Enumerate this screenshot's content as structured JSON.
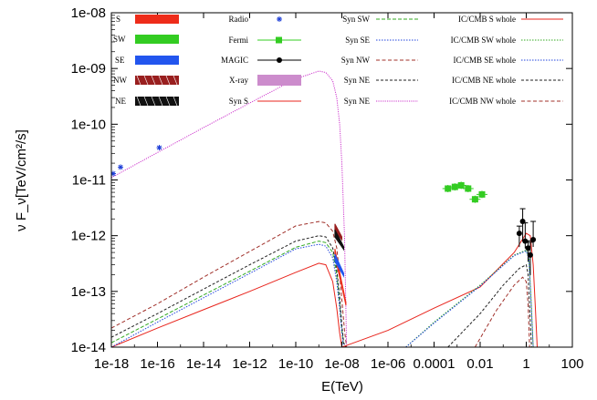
{
  "chart_data": {
    "type": "line",
    "xlabel": "E(TeV)",
    "ylabel": "ν F_ν[TeV/cm²/s]",
    "xscale": "log",
    "yscale": "log",
    "xlim": [
      1e-18,
      100
    ],
    "ylim": [
      1e-14,
      1e-08
    ],
    "grid": false,
    "legend_placement": "top",
    "x_tick_labels": [
      "1e-18",
      "1e-16",
      "1e-14",
      "1e-12",
      "1e-10",
      "1e-08",
      "1e-06",
      "0.0001",
      "0.01",
      "1",
      "100"
    ],
    "y_tick_labels": [
      "1e-08",
      "1e-09",
      "1e-10",
      "1e-11",
      "1e-12",
      "1e-13",
      "1e-14"
    ],
    "region_tags": [
      "S",
      "SW",
      "SE",
      "NW",
      "NE"
    ],
    "legend": {
      "col1": [
        "Radio",
        "Fermi",
        "MAGIC",
        "X-ray",
        "Syn S"
      ],
      "col2": [
        "Syn SW",
        "Syn SE",
        "Syn NW",
        "Syn NE",
        "Syn NE"
      ],
      "col3": [
        "IC/CMB S whole",
        "IC/CMB SW whole",
        "IC/CMB SE whole",
        "IC/CMB NE whole",
        "IC/CMB NW whole"
      ]
    },
    "series": [
      {
        "name": "Radio",
        "kind": "points",
        "color": "#1f3fd8",
        "x": [
          1.2e-18,
          2.5e-18,
          1.2e-16
        ],
        "y": [
          1.3e-11,
          1.7e-11,
          3.8e-11
        ]
      },
      {
        "name": "Fermi",
        "kind": "points",
        "color": "#33cc22",
        "x": [
          0.0004,
          0.0008,
          0.0015,
          0.003,
          0.006,
          0.012
        ],
        "y": [
          7e-12,
          7.5e-12,
          8e-12,
          7e-12,
          4.5e-12,
          5.5e-12
        ]
      },
      {
        "name": "MAGIC",
        "kind": "points",
        "color": "#000000",
        "x": [
          0.5,
          0.7,
          0.9,
          1.2,
          1.5,
          2.0
        ],
        "y": [
          1.1e-12,
          1.8e-12,
          8e-13,
          6e-13,
          4.5e-13,
          8.5e-13
        ]
      },
      {
        "name": "X-ray",
        "kind": "bowtie",
        "region": "S",
        "color": "#ee2c1a",
        "x": [
          5e-09,
          1.5e-08
        ],
        "y": [
          5e-13,
          6e-14
        ]
      },
      {
        "name": "X-ray",
        "kind": "bowtie",
        "region": "SE",
        "color": "#2255ee",
        "x": [
          5e-09,
          1.2e-08
        ],
        "y": [
          4e-13,
          2e-13
        ]
      },
      {
        "name": "X-ray",
        "kind": "bowtie",
        "region": "NW",
        "color": "#991f1f",
        "x": [
          5e-09,
          1e-08
        ],
        "y": [
          1.4e-12,
          9e-13
        ]
      },
      {
        "name": "X-ray",
        "kind": "bowtie",
        "region": "NE",
        "color": "#111111",
        "x": [
          5e-09,
          1.2e-08
        ],
        "y": [
          1.1e-12,
          6e-13
        ]
      },
      {
        "name": "Syn S",
        "kind": "line",
        "color": "#e8241c",
        "dash": "",
        "x": [
          1e-18,
          1e-16,
          1e-14,
          1e-12,
          1e-10,
          1e-09,
          2e-09,
          4e-09,
          6e-09,
          8e-09,
          1e-08
        ],
        "y": [
          1e-14,
          2.2e-14,
          4.7e-14,
          1e-13,
          2.2e-13,
          3.2e-13,
          3e-13,
          1.5e-13,
          5e-14,
          1.8e-14,
          1e-14
        ]
      },
      {
        "name": "Syn SW",
        "kind": "line",
        "color": "#33aa22",
        "dash": "4,2",
        "x": [
          1e-18,
          1e-16,
          1e-14,
          1e-12,
          1e-10,
          1e-09,
          2e-09,
          4e-09,
          6e-09,
          8e-09,
          1e-08,
          1.2e-08
        ],
        "y": [
          1.2e-14,
          3.2e-14,
          8.6e-14,
          2.3e-13,
          6.2e-13,
          8e-13,
          7.5e-13,
          5e-13,
          2e-13,
          6e-14,
          2e-14,
          1e-14
        ]
      },
      {
        "name": "Syn SE",
        "kind": "line",
        "color": "#2244dd",
        "dash": "1.5,1.5",
        "x": [
          1e-18,
          1e-16,
          1e-14,
          1e-12,
          1e-10,
          1e-09,
          2e-09,
          4e-09,
          6e-09,
          8e-09,
          1e-08,
          1.2e-08
        ],
        "y": [
          1e-14,
          2.8e-14,
          7.7e-14,
          2.1e-13,
          5.8e-13,
          7e-13,
          6.5e-13,
          4e-13,
          1.5e-13,
          5e-14,
          1.8e-14,
          1e-14
        ]
      },
      {
        "name": "Syn NW",
        "kind": "line",
        "color": "#a0302a",
        "dash": "4,2.5",
        "x": [
          1e-18,
          1e-16,
          1e-14,
          1e-12,
          1e-10,
          1e-09,
          2e-09,
          4e-09,
          6e-09,
          8e-09,
          1e-08,
          1.3e-08,
          1.6e-08
        ],
        "y": [
          2.2e-14,
          6e-14,
          1.8e-13,
          5.2e-13,
          1.5e-12,
          1.8e-12,
          1.7e-12,
          1.2e-12,
          6e-13,
          2e-13,
          7e-14,
          2e-14,
          1e-14
        ]
      },
      {
        "name": "Syn NE",
        "kind": "line",
        "color": "#222222",
        "dash": "3,2",
        "x": [
          1e-18,
          1e-16,
          1e-14,
          1e-12,
          1e-10,
          1e-09,
          2e-09,
          4e-09,
          6e-09,
          8e-09,
          1e-08,
          1.2e-08,
          1.5e-08
        ],
        "y": [
          1.5e-14,
          4e-14,
          1.1e-13,
          3e-13,
          8e-13,
          1e-12,
          9.5e-13,
          6e-13,
          2.5e-13,
          8e-14,
          2.5e-14,
          1.2e-14,
          1e-14
        ]
      },
      {
        "name": "Syn NE",
        "kind": "line",
        "color": "#cc33cc",
        "dash": "1.2,1.2",
        "x": [
          1e-18,
          1e-16,
          1e-14,
          1e-12,
          1e-10,
          1e-09,
          2e-09,
          4e-09,
          6e-09,
          8e-09,
          1e-08,
          1.3e-08,
          1.6e-08
        ],
        "y": [
          1.1e-11,
          3.1e-11,
          8.7e-11,
          2.4e-10,
          6.5e-10,
          9e-10,
          8.5e-10,
          6e-10,
          3e-10,
          1e-10,
          2e-11,
          1e-12,
          1e-14
        ]
      },
      {
        "name": "IC/CMB S whole",
        "kind": "line",
        "color": "#e8241c",
        "dash": "",
        "x": [
          1e-08,
          1e-06,
          0.0001,
          0.01,
          0.3,
          1,
          1.5,
          2,
          2.5,
          3
        ],
        "y": [
          1e-14,
          2e-14,
          5e-14,
          1.2e-13,
          5e-13,
          1.1e-12,
          1e-12,
          3e-13,
          5e-14,
          1e-14
        ]
      },
      {
        "name": "IC/CMB SW whole",
        "kind": "line",
        "color": "#33aa22",
        "dash": "1.5,1.5",
        "x": [
          6e-06,
          0.0001,
          0.01,
          0.3,
          1,
          1.3,
          1.6,
          2
        ],
        "y": [
          1e-14,
          2.8e-14,
          1.3e-13,
          4.5e-13,
          5.5e-13,
          4e-13,
          8e-14,
          1e-14
        ]
      },
      {
        "name": "IC/CMB SE whole",
        "kind": "line",
        "color": "#2244dd",
        "dash": "1.5,1.5",
        "x": [
          6e-06,
          0.0001,
          0.01,
          0.3,
          1,
          1.3,
          1.6,
          2
        ],
        "y": [
          1e-14,
          2.7e-14,
          1.25e-13,
          4.4e-13,
          5.3e-13,
          3.8e-13,
          7e-14,
          1e-14
        ]
      },
      {
        "name": "IC/CMB NE whole",
        "kind": "line",
        "color": "#222222",
        "dash": "3,2",
        "x": [
          0.0004,
          0.01,
          0.1,
          0.5,
          1,
          1.2,
          1.4,
          1.7
        ],
        "y": [
          1e-14,
          4e-14,
          1.3e-13,
          2.6e-13,
          3e-13,
          2e-13,
          5e-14,
          1e-14
        ]
      },
      {
        "name": "IC/CMB NW whole",
        "kind": "line",
        "color": "#a0302a",
        "dash": "4,2.5",
        "x": [
          0.006,
          0.05,
          0.3,
          0.7,
          1,
          1.2,
          1.4
        ],
        "y": [
          1e-14,
          4.5e-14,
          1.3e-13,
          1.8e-13,
          1.5e-13,
          6e-14,
          1e-14
        ]
      }
    ]
  }
}
